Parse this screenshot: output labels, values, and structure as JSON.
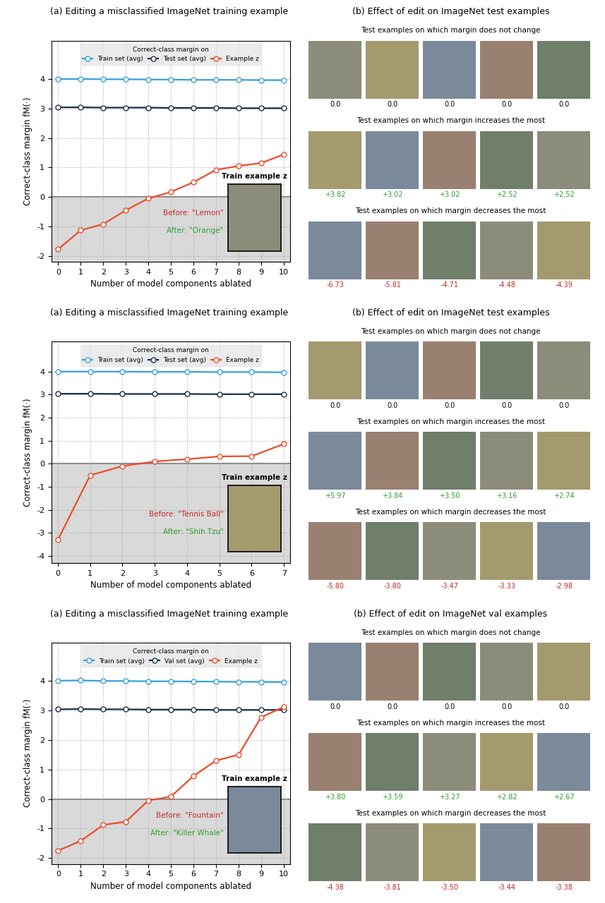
{
  "chart_data": [
    {
      "type": "line",
      "title": "(a) Editing a misclassified ImageNet training example",
      "xlabel": "Number of model components ablated",
      "ylabel": "Correct-class margin fM(·)",
      "legend_title": "Correct-class margin on",
      "legend": "upper center",
      "grid": true,
      "xlim": [
        -0.3,
        10.3
      ],
      "xticks": [
        0,
        1,
        2,
        3,
        4,
        5,
        6,
        7,
        8,
        9,
        10
      ],
      "ylim": [
        -2.2,
        5.3
      ],
      "yticks": [
        -2,
        -1,
        0,
        1,
        2,
        3,
        4
      ],
      "x": [
        0,
        1,
        2,
        3,
        4,
        5,
        6,
        7,
        8,
        9,
        10
      ],
      "series": [
        {
          "name": "Train set (avg)",
          "color": "#3aa0dd",
          "marker": "o",
          "line_style": "solid",
          "values": [
            4.0,
            4.0,
            3.99,
            3.99,
            3.98,
            3.98,
            3.97,
            3.97,
            3.97,
            3.96,
            3.96
          ]
        },
        {
          "name": "Test set (avg)",
          "color": "#1f2d4d",
          "marker": "o",
          "line_style": "solid",
          "values": [
            3.04,
            3.04,
            3.03,
            3.03,
            3.03,
            3.02,
            3.02,
            3.02,
            3.01,
            3.01,
            3.01
          ]
        },
        {
          "name": "Example z",
          "color": "#ec4c2a",
          "marker": "o",
          "line_style": "solid",
          "values": [
            -1.77,
            -1.13,
            -0.92,
            -0.45,
            -0.05,
            0.17,
            0.5,
            0.92,
            1.05,
            1.15,
            1.44
          ]
        }
      ],
      "annotations": {
        "inset_title": "Train example z",
        "before": "Before: \"Lemon\"",
        "after": "After: \"Orange\""
      }
    },
    {
      "type": "line",
      "title": "(a) Editing a misclassified ImageNet training example",
      "xlabel": "Number of model components ablated",
      "ylabel": "Correct-class margin fM(·)",
      "legend_title": "Correct-class margin on",
      "legend": "upper center",
      "grid": true,
      "xlim": [
        -0.2,
        7.2
      ],
      "xticks": [
        0,
        1,
        2,
        3,
        4,
        5,
        6,
        7
      ],
      "ylim": [
        -4.3,
        5.3
      ],
      "yticks": [
        -4,
        -3,
        -2,
        -1,
        0,
        1,
        2,
        3,
        4
      ],
      "x": [
        0,
        1,
        2,
        3,
        4,
        5,
        6,
        7
      ],
      "series": [
        {
          "name": "Train set (avg)",
          "color": "#3aa0dd",
          "marker": "o",
          "line_style": "solid",
          "values": [
            4.0,
            4.0,
            4.0,
            3.99,
            3.99,
            3.98,
            3.98,
            3.97
          ]
        },
        {
          "name": "Test set (avg)",
          "color": "#1f2d4d",
          "marker": "o",
          "line_style": "solid",
          "values": [
            3.04,
            3.04,
            3.03,
            3.03,
            3.03,
            3.02,
            3.02,
            3.02
          ]
        },
        {
          "name": "Example z",
          "color": "#ec4c2a",
          "marker": "o",
          "line_style": "solid",
          "values": [
            -3.3,
            -0.5,
            -0.1,
            0.1,
            0.2,
            0.32,
            0.33,
            0.86
          ]
        }
      ],
      "annotations": {
        "inset_title": "Train example z",
        "before": "Before: \"Tennis Ball\"",
        "after": "After: \"Shih Tzu\""
      }
    },
    {
      "type": "line",
      "title": "(a) Editing a misclassified ImageNet training example",
      "xlabel": "Number of model components ablated",
      "ylabel": "Correct-class margin fM(·)",
      "legend_title": "Correct-class margin on",
      "legend": "upper center",
      "grid": true,
      "xlim": [
        -0.3,
        10.3
      ],
      "xticks": [
        0,
        1,
        2,
        3,
        4,
        5,
        6,
        7,
        8,
        9,
        10
      ],
      "ylim": [
        -2.2,
        5.3
      ],
      "yticks": [
        -2,
        -1,
        0,
        1,
        2,
        3,
        4
      ],
      "x": [
        0,
        1,
        2,
        3,
        4,
        5,
        6,
        7,
        8,
        9,
        10
      ],
      "series": [
        {
          "name": "Train set (avg)",
          "color": "#3aa0dd",
          "marker": "o",
          "line_style": "solid",
          "values": [
            4.01,
            4.02,
            4.0,
            4.0,
            3.99,
            3.99,
            3.98,
            3.98,
            3.97,
            3.97,
            3.96
          ]
        },
        {
          "name": "Val set (avg)",
          "color": "#1f2d4d",
          "marker": "o",
          "line_style": "solid",
          "values": [
            3.04,
            3.05,
            3.04,
            3.04,
            3.03,
            3.03,
            3.03,
            3.02,
            3.02,
            3.02,
            3.02
          ]
        },
        {
          "name": "Example z",
          "color": "#ec4c2a",
          "marker": "o",
          "line_style": "solid",
          "values": [
            -1.75,
            -1.42,
            -0.88,
            -0.77,
            -0.05,
            0.08,
            0.78,
            1.3,
            1.5,
            2.77,
            3.12
          ]
        }
      ],
      "annotations": {
        "inset_title": "Train example z",
        "before": "Before: \"Fountain\"",
        "after": "After: \"Killer Whale\""
      }
    }
  ],
  "effect_panels": [
    {
      "title": "(b) Effect of edit on ImageNet test examples",
      "rows": [
        {
          "heading": "Test examples on which margin does not change",
          "values": [
            0.0,
            0.0,
            0.0,
            0.0,
            0.0
          ],
          "value_labels": [
            "0.0",
            "0.0",
            "0.0",
            "0.0",
            "0.0"
          ]
        },
        {
          "heading": "Test examples on which margin increases the most",
          "values": [
            3.82,
            3.02,
            3.02,
            2.52,
            2.52
          ],
          "value_labels": [
            "+3.82",
            "+3.02",
            "+3.02",
            "+2.52",
            "+2.52"
          ]
        },
        {
          "heading": "Test examples on which margin decreases the most",
          "values": [
            -6.73,
            -5.81,
            -4.71,
            -4.48,
            -4.39
          ],
          "value_labels": [
            "-6.73",
            "-5.81",
            "-4.71",
            "-4.48",
            "-4.39"
          ]
        }
      ]
    },
    {
      "title": "(b) Effect of edit on ImageNet test examples",
      "rows": [
        {
          "heading": "Test examples on which margin does not change",
          "values": [
            0.0,
            0.0,
            0.0,
            0.0,
            0.0
          ],
          "value_labels": [
            "0.0",
            "0.0",
            "0.0",
            "0.0",
            "0.0"
          ]
        },
        {
          "heading": "Test examples on which margin increases the most",
          "values": [
            5.97,
            3.84,
            3.5,
            3.16,
            2.74
          ],
          "value_labels": [
            "+5.97",
            "+3.84",
            "+3.50",
            "+3.16",
            "+2.74"
          ]
        },
        {
          "heading": "Test examples on which margin decreases the most",
          "values": [
            -5.8,
            -3.8,
            -3.47,
            -3.33,
            -2.98
          ],
          "value_labels": [
            "-5.80",
            "-3.80",
            "-3.47",
            "-3.33",
            "-2.98"
          ]
        }
      ]
    },
    {
      "title": "(b) Effect of edit on ImageNet val examples",
      "rows": [
        {
          "heading": "Test examples on which margin does not change",
          "values": [
            0.0,
            0.0,
            0.0,
            0.0,
            0.0
          ],
          "value_labels": [
            "0.0",
            "0.0",
            "0.0",
            "0.0",
            "0.0"
          ]
        },
        {
          "heading": "Test examples on which margin increases the most",
          "values": [
            3.8,
            3.59,
            3.27,
            2.82,
            2.67
          ],
          "value_labels": [
            "+3.80",
            "+3.59",
            "+3.27",
            "+2.82",
            "+2.67"
          ]
        },
        {
          "heading": "Test examples on which margin decreases the most",
          "values": [
            -4.38,
            -3.81,
            -3.5,
            -3.44,
            -3.38
          ],
          "value_labels": [
            "-4.38",
            "-3.81",
            "-3.50",
            "-3.44",
            "-3.38"
          ]
        }
      ]
    }
  ]
}
